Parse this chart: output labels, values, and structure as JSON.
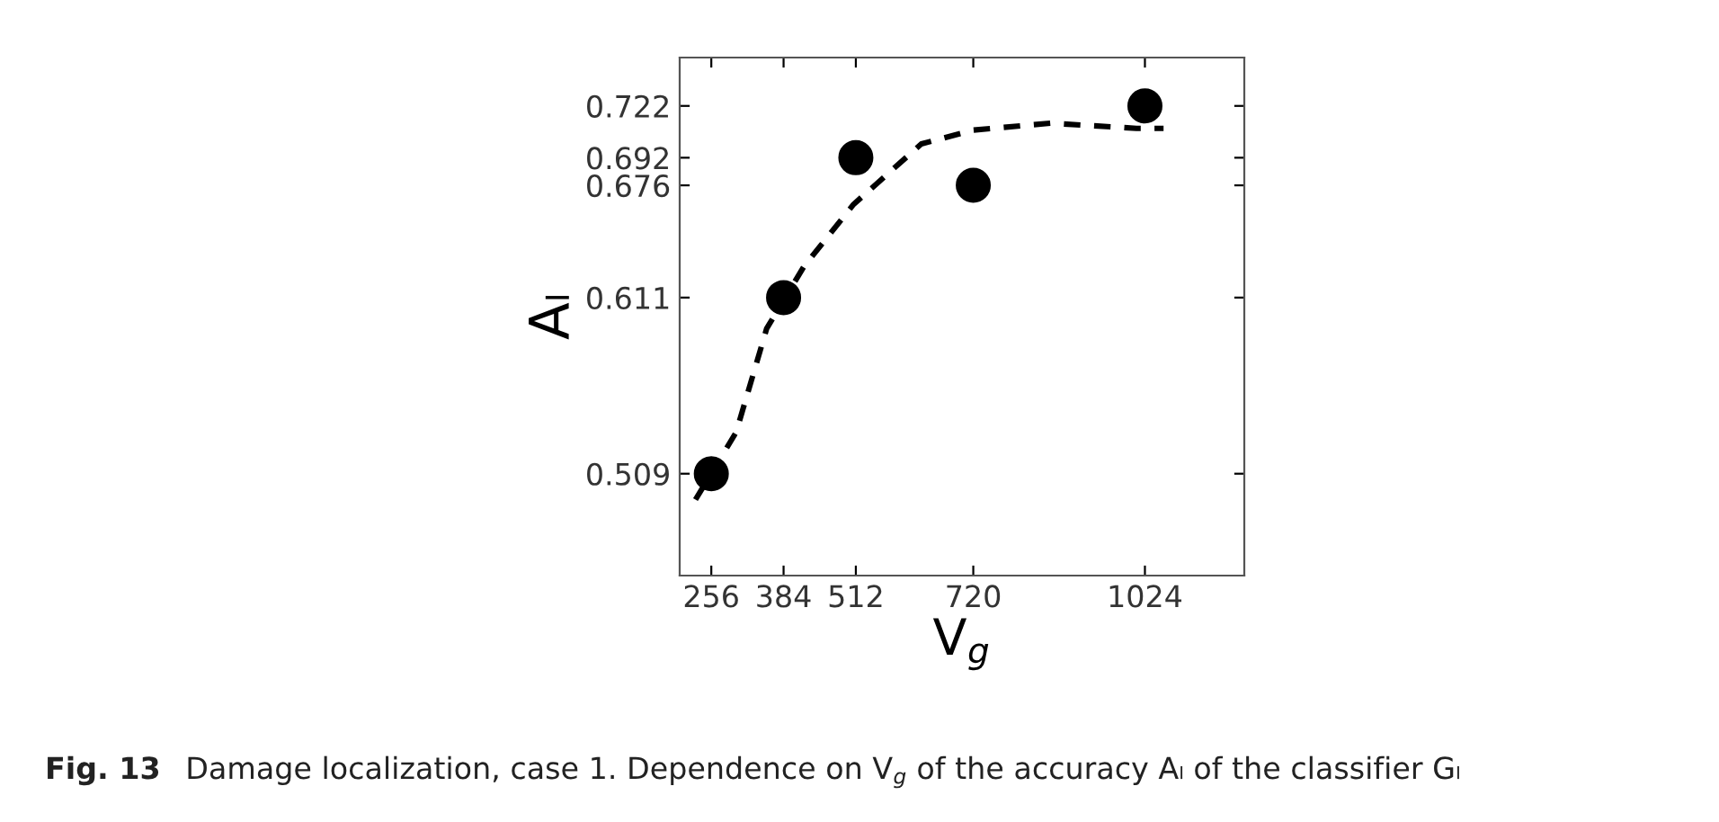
{
  "chart_data": {
    "type": "scatter",
    "xlabel": "V$_{g}$",
    "ylabel": "Aₗ",
    "annotations": [
      "Fig. 13",
      "Damage localization, case 1. Dependence on V$_{g}$",
      "of the accuracy Aₗ of the classifier Gₗ"
    ],
    "series": [
      {
        "color": "#000000",
        "marker": "circle",
        "x": [
          256,
          384,
          512,
          720,
          1024
        ],
        "values": [
          0.509,
          0.611,
          0.692,
          0.676,
          0.722
        ]
      },
      {
        "type": "line",
        "color": "#000000",
        "line_style": "dashed",
        "marker": "none",
        "x": [
          228,
          300,
          354,
          420,
          508,
          628,
          720,
          857,
          1009,
          1057
        ],
        "values": [
          0.494,
          0.533,
          0.593,
          0.629,
          0.665,
          0.7,
          0.708,
          0.712,
          0.709,
          0.709
        ]
      }
    ],
    "xlim": [
      200,
      1200
    ],
    "ylim": [
      0.45,
      0.75
    ],
    "xticks": [
      256,
      384,
      512,
      720,
      1024
    ],
    "yticks": [
      0.509,
      0.611,
      0.676,
      0.692,
      0.722
    ],
    "grid": false,
    "legend": false
  }
}
